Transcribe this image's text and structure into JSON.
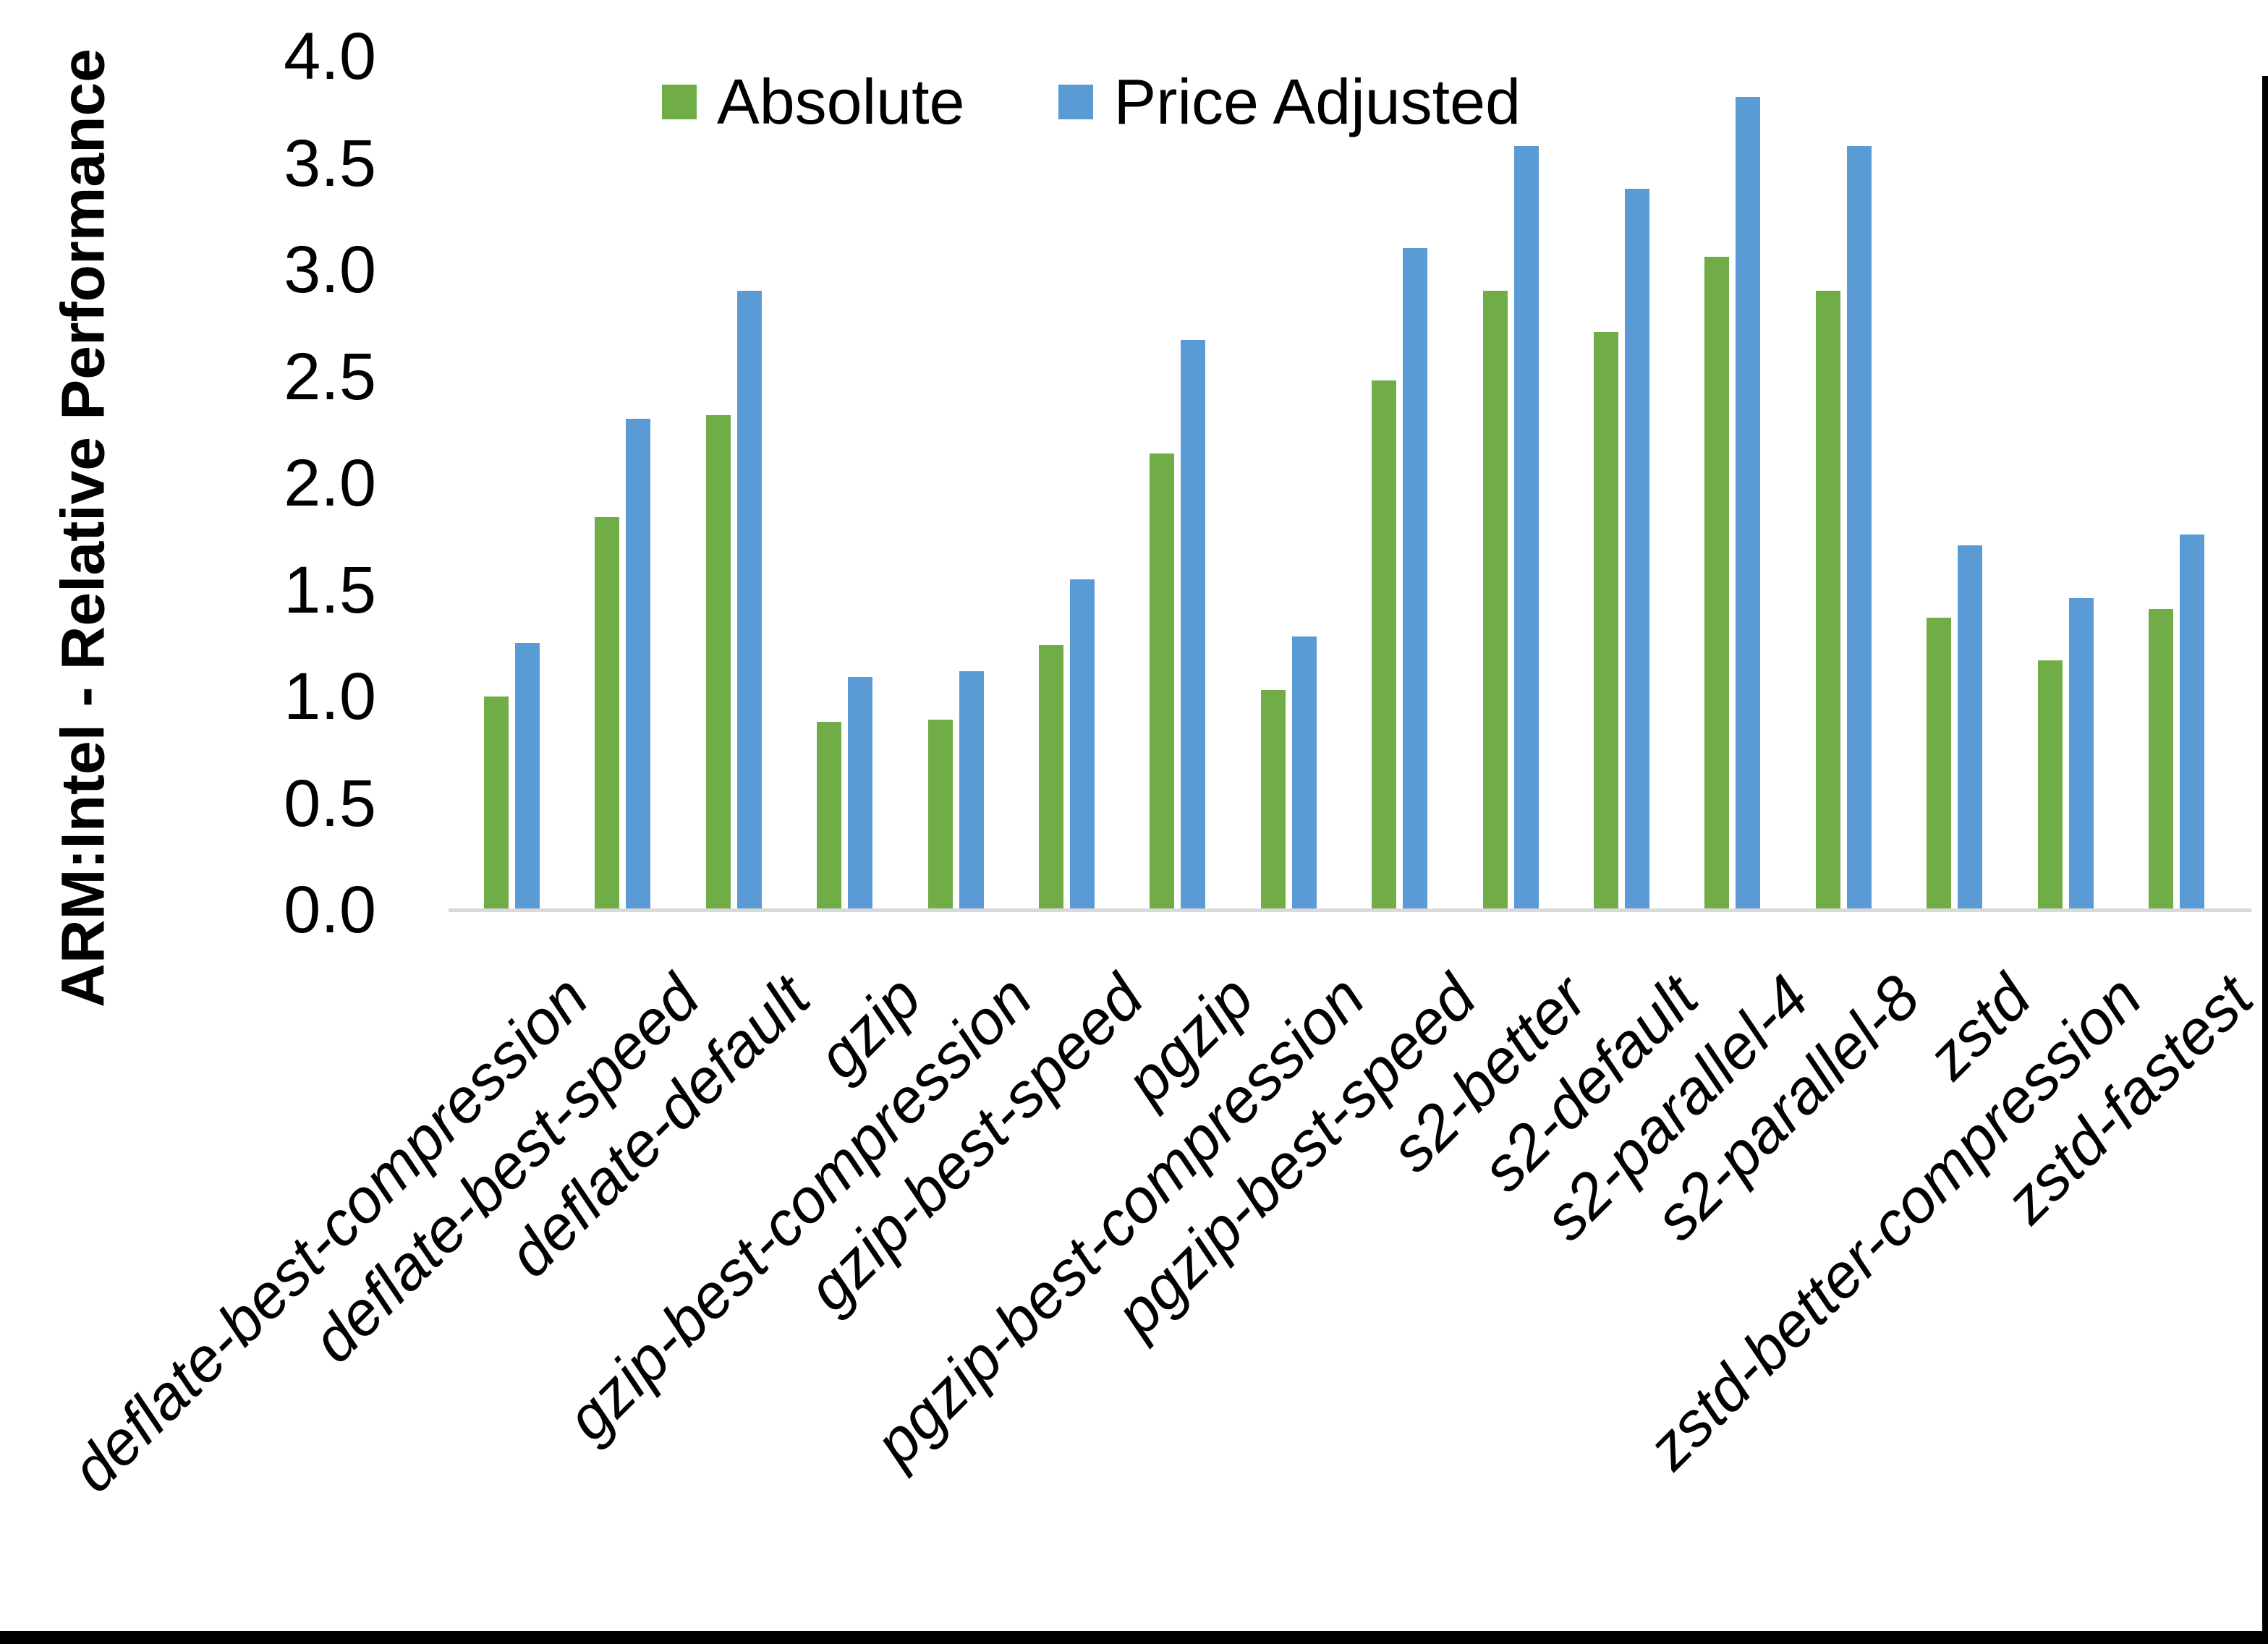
{
  "chart_data": {
    "type": "bar",
    "title": "",
    "ylabel": "ARM:Intel - Relative Performance",
    "xlabel": "",
    "ylim": [
      0.0,
      4.0
    ],
    "ytick_interval": 0.5,
    "ytick_labels": [
      "0.0",
      "0.5",
      "1.0",
      "1.5",
      "2.0",
      "2.5",
      "3.0",
      "3.5",
      "4.0"
    ],
    "grid": false,
    "legend_position": "top-center",
    "categories": [
      "deflate-best-compression",
      "deflate-best-speed",
      "deflate-default",
      "gzip",
      "gzip-best-compression",
      "gzip-best-speed",
      "pgzip",
      "pgzip-best-compression",
      "pgzip-best-speed",
      "s2-better",
      "s2-default",
      "s2-parallel-4",
      "s2-parallel-8",
      "zstd",
      "zstd-better-compression",
      "zstd-fastest"
    ],
    "series": [
      {
        "name": "Absolute",
        "color": "#70AD47",
        "values": [
          1.0,
          1.84,
          2.32,
          0.88,
          0.89,
          1.24,
          2.14,
          1.03,
          2.48,
          2.9,
          2.71,
          3.06,
          2.9,
          1.37,
          1.17,
          1.41
        ]
      },
      {
        "name": "Price Adjusted",
        "color": "#5B9BD5",
        "values": [
          1.25,
          2.3,
          2.9,
          1.09,
          1.12,
          1.55,
          2.67,
          1.28,
          3.1,
          3.58,
          3.38,
          3.81,
          3.58,
          1.71,
          1.46,
          1.76
        ]
      }
    ]
  },
  "colors": {
    "background": "#FFFFFF",
    "axis_line": "#D9D9D9",
    "text": "#000000",
    "border": "#000000"
  }
}
